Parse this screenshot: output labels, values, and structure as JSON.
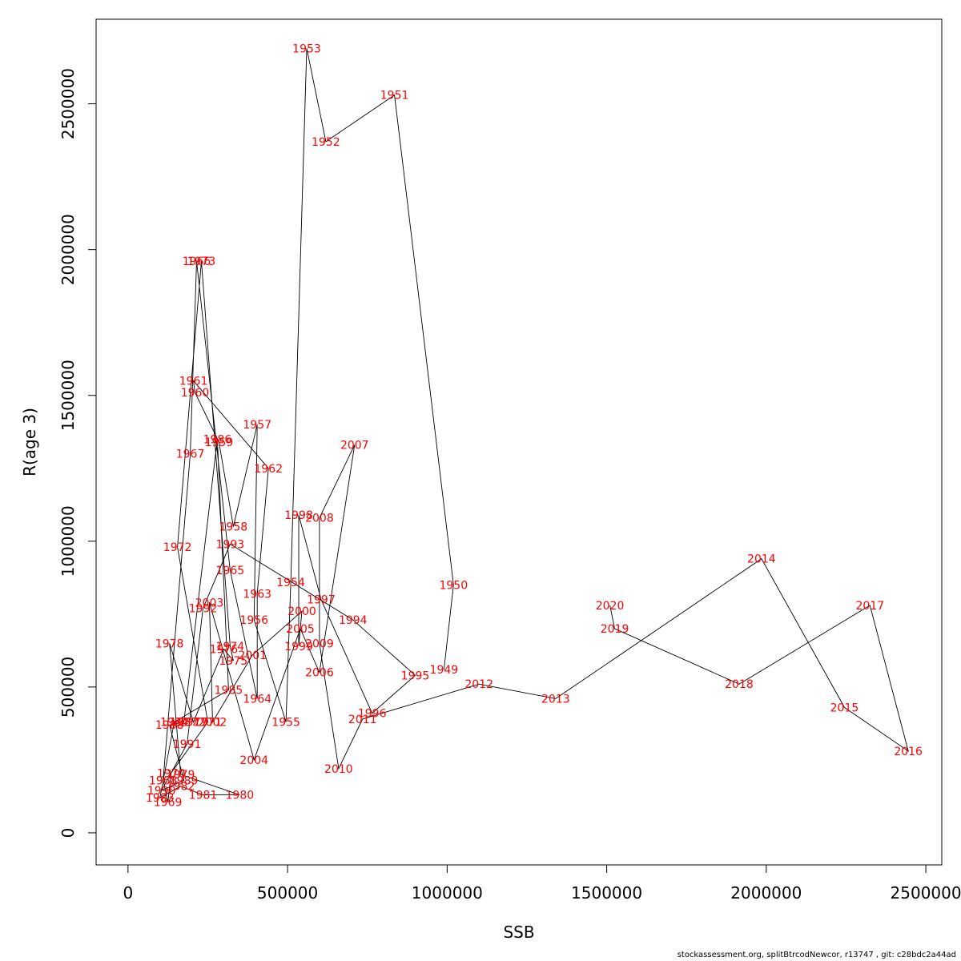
{
  "chart_data": {
    "type": "line",
    "xlabel": "SSB",
    "ylabel": "R(age 3)",
    "xlim": [
      -100000,
      2550000
    ],
    "ylim": [
      -110000,
      2790000
    ],
    "x_ticks": [
      0,
      500000,
      1000000,
      1500000,
      2000000,
      2500000
    ],
    "x_tick_labels": [
      "0",
      "500000",
      "1000000",
      "1500000",
      "2000000",
      "2500000"
    ],
    "y_ticks": [
      0,
      500000,
      1000000,
      1500000,
      2000000,
      2500000
    ],
    "y_tick_labels": [
      "0",
      "500000",
      "1000000",
      "1500000",
      "2000000",
      "2500000"
    ],
    "grid": false,
    "line_color": "#000000",
    "label_color": "#ff0000",
    "points": [
      {
        "year": "1949",
        "ssb": 990000,
        "r": 560000
      },
      {
        "year": "1950",
        "ssb": 1020000,
        "r": 850000
      },
      {
        "year": "1951",
        "ssb": 835000,
        "r": 2530000
      },
      {
        "year": "1952",
        "ssb": 620000,
        "r": 2370000
      },
      {
        "year": "1953",
        "ssb": 560000,
        "r": 2690000
      },
      {
        "year": "1954",
        "ssb": 510000,
        "r": 860000
      },
      {
        "year": "1955",
        "ssb": 495000,
        "r": 380000
      },
      {
        "year": "1956",
        "ssb": 395000,
        "r": 730000
      },
      {
        "year": "1957",
        "ssb": 405000,
        "r": 1400000
      },
      {
        "year": "1958",
        "ssb": 330000,
        "r": 1050000
      },
      {
        "year": "1959",
        "ssb": 285000,
        "r": 1340000
      },
      {
        "year": "1960",
        "ssb": 210000,
        "r": 1510000
      },
      {
        "year": "1961",
        "ssb": 205000,
        "r": 1550000
      },
      {
        "year": "1962",
        "ssb": 440000,
        "r": 1250000
      },
      {
        "year": "1963",
        "ssb": 405000,
        "r": 820000
      },
      {
        "year": "1964",
        "ssb": 405000,
        "r": 460000
      },
      {
        "year": "1965",
        "ssb": 320000,
        "r": 900000
      },
      {
        "year": "1966",
        "ssb": 215000,
        "r": 1960000
      },
      {
        "year": "1967",
        "ssb": 195000,
        "r": 1300000
      },
      {
        "year": "1968",
        "ssb": 110000,
        "r": 180000
      },
      {
        "year": "1969",
        "ssb": 125000,
        "r": 105000
      },
      {
        "year": "1970",
        "ssb": 135000,
        "r": 205000
      },
      {
        "year": "1971",
        "ssb": 250000,
        "r": 380000
      },
      {
        "year": "1972",
        "ssb": 155000,
        "r": 980000
      },
      {
        "year": "1973",
        "ssb": 230000,
        "r": 1960000
      },
      {
        "year": "1974",
        "ssb": 320000,
        "r": 640000
      },
      {
        "year": "1975",
        "ssb": 330000,
        "r": 590000
      },
      {
        "year": "1976",
        "ssb": 300000,
        "r": 630000
      },
      {
        "year": "1977",
        "ssb": 205000,
        "r": 380000
      },
      {
        "year": "1978",
        "ssb": 130000,
        "r": 650000
      },
      {
        "year": "1979",
        "ssb": 165000,
        "r": 200000
      },
      {
        "year": "1980",
        "ssb": 350000,
        "r": 130000
      },
      {
        "year": "1981",
        "ssb": 235000,
        "r": 130000
      },
      {
        "year": "1982",
        "ssb": 165000,
        "r": 160000
      },
      {
        "year": "1983",
        "ssb": 100000,
        "r": 120000
      },
      {
        "year": "1984",
        "ssb": 145000,
        "r": 380000
      },
      {
        "year": "1985",
        "ssb": 315000,
        "r": 490000
      },
      {
        "year": "1986",
        "ssb": 280000,
        "r": 1350000
      },
      {
        "year": "1987",
        "ssb": 175000,
        "r": 380000
      },
      {
        "year": "1988",
        "ssb": 130000,
        "r": 370000
      },
      {
        "year": "1989",
        "ssb": 175000,
        "r": 180000
      },
      {
        "year": "1990",
        "ssb": 105000,
        "r": 145000
      },
      {
        "year": "1991",
        "ssb": 185000,
        "r": 305000
      },
      {
        "year": "1992",
        "ssb": 235000,
        "r": 770000
      },
      {
        "year": "1993",
        "ssb": 320000,
        "r": 990000
      },
      {
        "year": "1994",
        "ssb": 705000,
        "r": 730000
      },
      {
        "year": "1995",
        "ssb": 900000,
        "r": 540000
      },
      {
        "year": "1996",
        "ssb": 765000,
        "r": 410000
      },
      {
        "year": "1997",
        "ssb": 605000,
        "r": 800000
      },
      {
        "year": "1998",
        "ssb": 535000,
        "r": 1090000
      },
      {
        "year": "1999",
        "ssb": 535000,
        "r": 640000
      },
      {
        "year": "2000",
        "ssb": 545000,
        "r": 760000
      },
      {
        "year": "2001",
        "ssb": 390000,
        "r": 610000
      },
      {
        "year": "2002",
        "ssb": 265000,
        "r": 380000
      },
      {
        "year": "2003",
        "ssb": 255000,
        "r": 790000
      },
      {
        "year": "2004",
        "ssb": 395000,
        "r": 250000
      },
      {
        "year": "2005",
        "ssb": 540000,
        "r": 700000
      },
      {
        "year": "2006",
        "ssb": 600000,
        "r": 550000
      },
      {
        "year": "2007",
        "ssb": 710000,
        "r": 1330000
      },
      {
        "year": "2008",
        "ssb": 600000,
        "r": 1080000
      },
      {
        "year": "2009",
        "ssb": 600000,
        "r": 650000
      },
      {
        "year": "2010",
        "ssb": 660000,
        "r": 220000
      },
      {
        "year": "2011",
        "ssb": 735000,
        "r": 390000
      },
      {
        "year": "2012",
        "ssb": 1100000,
        "r": 510000
      },
      {
        "year": "2013",
        "ssb": 1340000,
        "r": 460000
      },
      {
        "year": "2014",
        "ssb": 1985000,
        "r": 940000
      },
      {
        "year": "2015",
        "ssb": 2245000,
        "r": 430000
      },
      {
        "year": "2016",
        "ssb": 2445000,
        "r": 280000
      },
      {
        "year": "2017",
        "ssb": 2325000,
        "r": 780000
      },
      {
        "year": "2018",
        "ssb": 1915000,
        "r": 510000
      },
      {
        "year": "2019",
        "ssb": 1525000,
        "r": 700000
      },
      {
        "year": "2020",
        "ssb": 1510000,
        "r": 780000
      }
    ]
  },
  "footer": "stockassessment.org, splitBtrcodNewcor, r13747 , git: c28bdc2a44ad"
}
